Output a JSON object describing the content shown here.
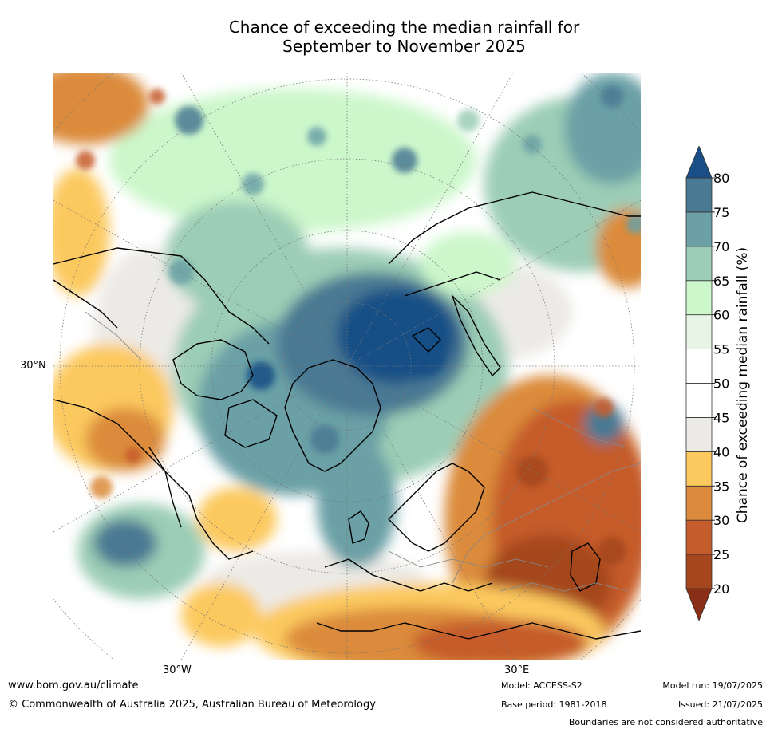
{
  "title": {
    "line1": "Chance of exceeding the median rainfall for",
    "line2": "September to November 2025"
  },
  "map": {
    "projection": "north polar stereographic",
    "axis_labels": {
      "left": "30°N",
      "bottom_left": "30°W",
      "bottom_right": "30°E"
    }
  },
  "colorbar": {
    "label": "Chance of exceeding median rainfall (%)",
    "ticks": [
      "20",
      "25",
      "30",
      "35",
      "40",
      "45",
      "50",
      "55",
      "60",
      "65",
      "70",
      "75",
      "80"
    ],
    "colors": [
      "#8b2e18",
      "#a5461f",
      "#c55c2b",
      "#db8b3b",
      "#fcc95f",
      "#eceae6",
      "#ffffff",
      "#ffffff",
      "#e8f4e6",
      "#ccf7cb",
      "#9ccdb6",
      "#6ba0a6",
      "#4a7993",
      "#194f86"
    ]
  },
  "footer": {
    "website": "www.bom.gov.au/climate",
    "copyright": "© Commonwealth of Australia 2025, Australian Bureau of Meteorology",
    "model": "Model: ACCESS-S2",
    "base_period": "Base period: 1981-2018",
    "model_run": "Model run: 19/07/2025",
    "issued": "Issued: 21/07/2025",
    "disclaimer": "Boundaries are not considered authoritative"
  }
}
